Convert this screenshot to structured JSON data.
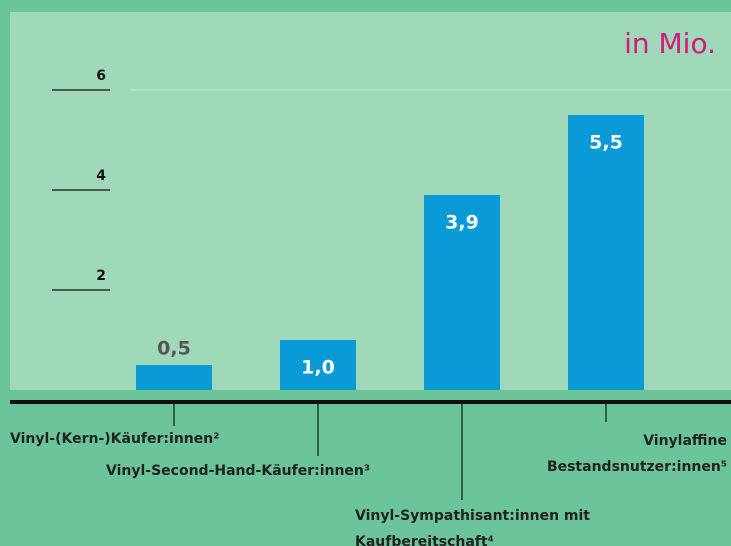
{
  "chart_data": {
    "type": "bar",
    "unit_label": "in Mio.",
    "categories": [
      "Vinyl-(Kern-)Käufer:innen²",
      "Vinyl-Second-Hand-Käufer:innen³",
      "Vinyl-Sympathisant:innen mit Kaufbereitschaft⁴",
      "Vinylaffine Bestandsnutzer:innen⁵"
    ],
    "values": [
      0.5,
      1.0,
      3.9,
      5.5
    ],
    "value_labels": [
      "0,5",
      "1,0",
      "3,9",
      "5,5"
    ],
    "color": "#0b9ad8",
    "ylim": [
      0,
      7.56
    ],
    "yticks": [
      2,
      4,
      6
    ]
  }
}
